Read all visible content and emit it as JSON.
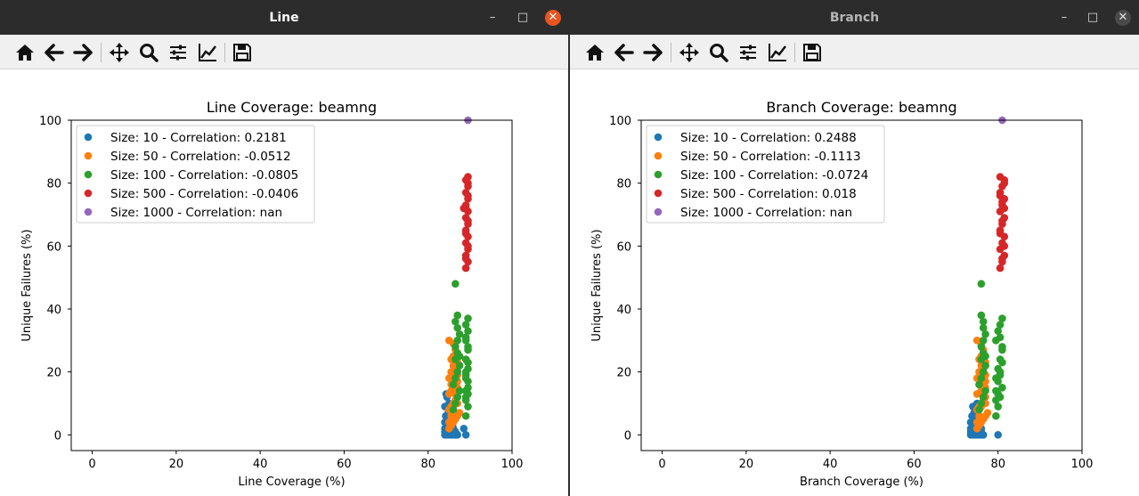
{
  "windows": [
    {
      "title": "Line",
      "active": true,
      "toolbar_icons": [
        "home-icon",
        "back-icon",
        "forward-icon",
        "pan-icon",
        "zoom-icon",
        "configure-subplots-icon",
        "edit-axis-icon",
        "save-icon"
      ],
      "colors": {
        "close_button": "#e95420"
      }
    },
    {
      "title": "Branch",
      "active": false,
      "toolbar_icons": [
        "home-icon",
        "back-icon",
        "forward-icon",
        "pan-icon",
        "zoom-icon",
        "configure-subplots-icon",
        "edit-axis-icon",
        "save-icon"
      ],
      "colors": {
        "close_button": "#4a4a4a"
      }
    }
  ],
  "chart_data": [
    {
      "type": "scatter",
      "title": "Line Coverage: beamng",
      "xlabel": "Line Coverage (%)",
      "ylabel": "Unique Failures (%)",
      "xlim": [
        -5,
        100
      ],
      "ylim": [
        -5,
        100
      ],
      "xticks": [
        "0",
        "20",
        "40",
        "60",
        "80",
        "100"
      ],
      "yticks": [
        "0",
        "20",
        "40",
        "60",
        "80",
        "100"
      ],
      "legend_position": "upper-left",
      "series": [
        {
          "name": "Size: 10 - Correlation: 0.2181",
          "color": "#1f77b4",
          "x": [
            84,
            84.5,
            85,
            85.5,
            86,
            86.5,
            87,
            84,
            84.5,
            85,
            85.5,
            86,
            86.5,
            84,
            85,
            86,
            84.5,
            85.5,
            84,
            84.5,
            85,
            85.5,
            86,
            89,
            88.5,
            84.5,
            85,
            84.2,
            84.8,
            85.2,
            84,
            85,
            86.5,
            84.5,
            85.8,
            84.3
          ],
          "y": [
            0,
            0,
            0,
            0,
            0,
            0,
            0,
            1,
            1,
            1,
            1,
            1,
            1,
            2,
            2,
            2,
            3,
            3,
            4,
            4,
            4,
            4,
            2,
            0,
            2,
            5,
            5,
            6,
            7,
            8,
            9,
            10,
            0,
            12,
            3,
            13
          ]
        },
        {
          "name": "Size: 50 - Correlation: -0.0512",
          "color": "#ff7f0e",
          "x": [
            85,
            85.5,
            86,
            86.5,
            87,
            87.5,
            85,
            85.5,
            86,
            86.5,
            87,
            85,
            86,
            87,
            85.5,
            86.5,
            85,
            86,
            87,
            85.5,
            86.5,
            86,
            87,
            85.5,
            86,
            86.5,
            85,
            86,
            86.5,
            87,
            85.5,
            85,
            86,
            87,
            85.5
          ],
          "y": [
            2,
            3,
            4,
            5,
            6,
            7,
            8,
            9,
            10,
            11,
            12,
            13,
            14,
            15,
            16,
            17,
            18,
            18,
            19,
            20,
            21,
            22,
            23,
            24,
            25,
            27,
            30,
            29,
            13,
            10,
            6,
            4,
            9,
            17,
            14
          ]
        },
        {
          "name": "Size: 100 - Correlation: -0.0805",
          "color": "#2ca02c",
          "x": [
            86,
            86.5,
            87,
            87.5,
            86,
            86.5,
            87,
            87.5,
            89,
            89.5,
            89,
            89.5,
            89,
            89.5,
            89,
            89.5,
            89,
            89.5,
            89,
            89.5,
            89,
            89.5,
            89,
            89.5,
            86.5,
            87,
            86.5,
            87,
            87.5,
            87,
            86.5,
            89,
            89.5,
            89,
            87,
            87.5,
            89.5,
            89,
            86.5
          ],
          "y": [
            8,
            10,
            12,
            14,
            16,
            18,
            20,
            22,
            6,
            9,
            12,
            15,
            18,
            21,
            24,
            27,
            30,
            33,
            35,
            37,
            14,
            17,
            20,
            23,
            24,
            26,
            28,
            30,
            32,
            34,
            36,
            11,
            13,
            31,
            38,
            25,
            28,
            19,
            48
          ]
        },
        {
          "name": "Size: 500 - Correlation: -0.0406",
          "color": "#d62728",
          "x": [
            89,
            89.5,
            89,
            89.5,
            89,
            89.5,
            89,
            89.5,
            89,
            89.5,
            89,
            89.5,
            89,
            89.5,
            89,
            89.5,
            89,
            89.5,
            89,
            89.5,
            89,
            89.5,
            88.5,
            89.5
          ],
          "y": [
            53,
            55,
            57,
            59,
            61,
            63,
            65,
            67,
            69,
            71,
            73,
            75,
            77,
            79,
            81,
            82,
            56,
            60,
            64,
            68,
            72,
            76,
            72,
            80
          ]
        },
        {
          "name": "Size: 1000 - Correlation: nan",
          "color": "#9467bd",
          "x": [
            89.5
          ],
          "y": [
            100
          ]
        }
      ]
    },
    {
      "type": "scatter",
      "title": "Branch Coverage: beamng",
      "xlabel": "Branch Coverage (%)",
      "ylabel": "Unique Failures (%)",
      "xlim": [
        -5,
        100
      ],
      "ylim": [
        -5,
        100
      ],
      "xticks": [
        "0",
        "20",
        "40",
        "60",
        "80",
        "100"
      ],
      "yticks": [
        "0",
        "20",
        "40",
        "60",
        "80",
        "100"
      ],
      "legend_position": "upper-left",
      "series": [
        {
          "name": "Size: 10 - Correlation: 0.2488",
          "color": "#1f77b4",
          "x": [
            73.5,
            74,
            74.5,
            75,
            75.5,
            76,
            76.5,
            73.5,
            74,
            74.5,
            75,
            75.5,
            76,
            73.5,
            74.5,
            75.5,
            74,
            75,
            73.5,
            74,
            74.5,
            75,
            76,
            80,
            74.5,
            75,
            73.8,
            74.3,
            74.8,
            74,
            75
          ],
          "y": [
            0,
            0,
            0,
            0,
            0,
            0,
            0,
            1,
            1,
            1,
            1,
            1,
            1,
            2,
            2,
            2,
            3,
            3,
            4,
            4,
            4,
            4,
            2,
            0,
            5,
            5,
            6,
            7,
            8,
            9,
            10
          ]
        },
        {
          "name": "Size: 50 - Correlation: -0.1113",
          "color": "#ff7f0e",
          "x": [
            75,
            75.5,
            76,
            76.5,
            77,
            77.5,
            75,
            75.5,
            76,
            76.5,
            77,
            75,
            76,
            77,
            75.5,
            76.5,
            75,
            76,
            77,
            75.5,
            76.5,
            76,
            77,
            75.5,
            76,
            76.5,
            75,
            76,
            76.5,
            77,
            75.5,
            75,
            76,
            77
          ],
          "y": [
            2,
            3,
            4,
            5,
            6,
            7,
            8,
            9,
            10,
            11,
            12,
            13,
            14,
            15,
            16,
            17,
            18,
            18,
            19,
            20,
            21,
            22,
            23,
            24,
            25,
            27,
            30,
            29,
            13,
            10,
            6,
            4,
            9,
            17
          ]
        },
        {
          "name": "Size: 100 - Correlation: -0.0724",
          "color": "#2ca02c",
          "x": [
            75.5,
            76,
            76.5,
            77,
            75.5,
            76,
            76.5,
            77,
            79.5,
            80,
            80.5,
            81,
            79.5,
            80,
            80.5,
            81,
            79.5,
            80,
            80.5,
            81,
            79.5,
            80,
            80.5,
            81,
            76,
            76.5,
            76,
            76.5,
            77,
            76.5,
            76,
            79.5,
            80,
            80.5,
            76.5,
            77,
            81,
            80.5,
            76
          ],
          "y": [
            8,
            10,
            12,
            14,
            16,
            18,
            20,
            22,
            6,
            9,
            12,
            15,
            18,
            21,
            24,
            27,
            30,
            33,
            35,
            37,
            14,
            17,
            20,
            23,
            24,
            26,
            28,
            30,
            32,
            34,
            38,
            11,
            13,
            31,
            36,
            25,
            28,
            19,
            48
          ]
        },
        {
          "name": "Size: 500 - Correlation: 0.018",
          "color": "#d62728",
          "x": [
            80.5,
            81,
            81.5,
            80.5,
            81,
            81.5,
            80.5,
            81,
            81.5,
            80.5,
            81,
            81.5,
            80.5,
            81,
            81.5,
            80.5,
            81,
            81.5,
            80.5,
            81,
            81.5,
            80.5,
            81,
            81.5
          ],
          "y": [
            53,
            55,
            57,
            59,
            61,
            63,
            65,
            67,
            69,
            71,
            73,
            75,
            77,
            79,
            81,
            82,
            56,
            60,
            64,
            68,
            72,
            76,
            74,
            80
          ]
        },
        {
          "name": "Size: 1000 - Correlation: nan",
          "color": "#9467bd",
          "x": [
            81
          ],
          "y": [
            100
          ]
        }
      ]
    }
  ]
}
